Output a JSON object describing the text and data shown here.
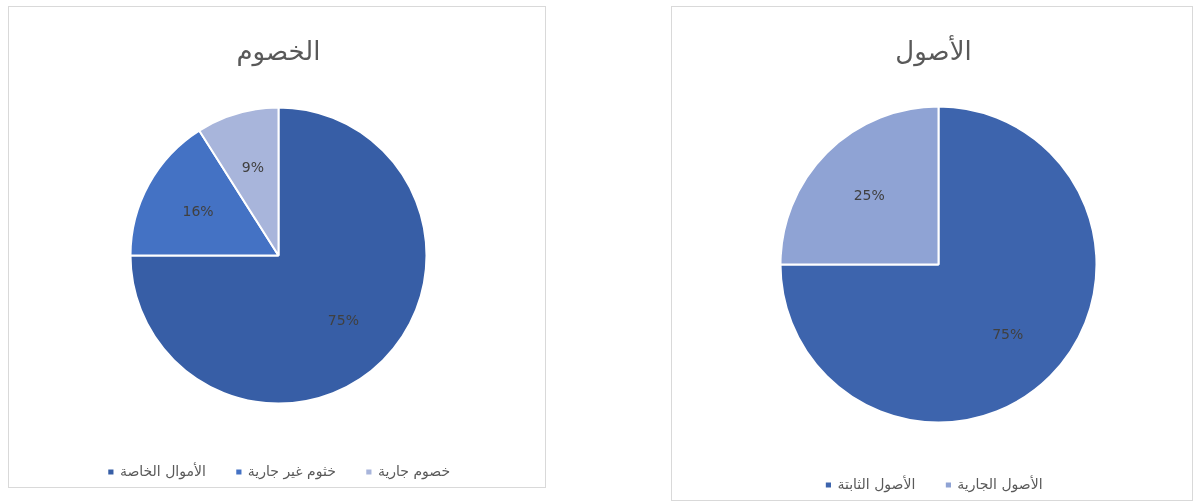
{
  "chart_data": [
    {
      "type": "pie",
      "title": "الخصوم",
      "categories": [
        "الأموال الخاصة",
        "خثوم غير جارية",
        "خصوم جارية"
      ],
      "values": [
        75,
        16,
        9
      ],
      "colors": [
        "#375ea6",
        "#4472c4",
        "#a8b5db"
      ],
      "value_labels": [
        "75%",
        "16%",
        "9%"
      ],
      "legend": "bottom"
    },
    {
      "type": "pie",
      "title": "الأصول",
      "categories": [
        "الأصول الثابتة",
        "الأصول الجارية"
      ],
      "values": [
        75,
        25
      ],
      "colors": [
        "#3d64ad",
        "#8fa3d4"
      ],
      "value_labels": [
        "75%",
        "25%"
      ],
      "legend": "bottom"
    }
  ]
}
